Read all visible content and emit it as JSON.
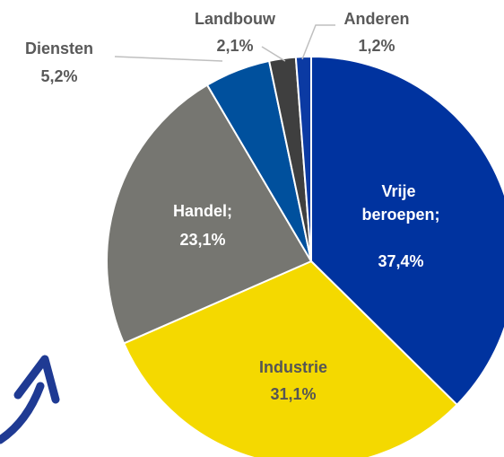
{
  "chart_data": {
    "type": "pie",
    "categories": [
      "Vrije beroepen;",
      "Industrie",
      "Handel;",
      "Diensten",
      "Landbouw",
      "Anderen"
    ],
    "values": [
      37.4,
      31.1,
      23.1,
      5.2,
      2.1,
      1.2
    ],
    "value_labels": [
      "37,4%",
      "31,1%",
      "23,1%",
      "5,2%",
      "2,1%",
      "1,2%"
    ],
    "colors": [
      "#00339f",
      "#f4d900",
      "#767671",
      "#00509d",
      "#3f3f3f",
      "#0b3aa3"
    ]
  }
}
